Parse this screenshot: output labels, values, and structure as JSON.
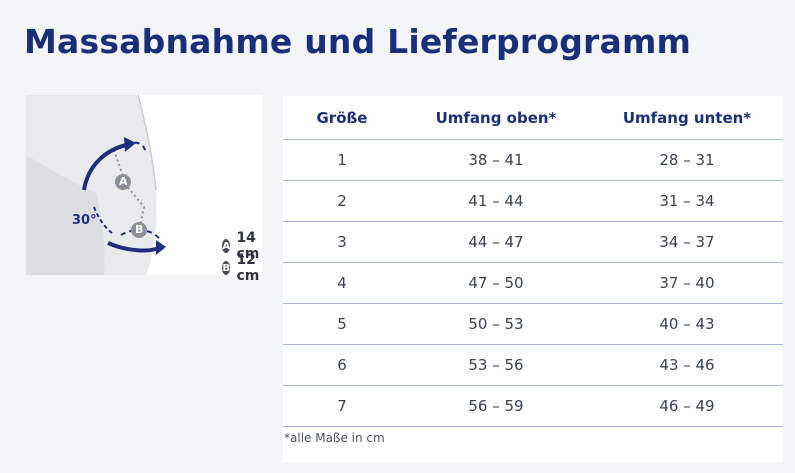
{
  "title": "Massabnahme und Lieferprogramm",
  "figure": {
    "angle_label": "30°",
    "marker_a": "A",
    "marker_b": "B",
    "legend": [
      {
        "marker": "A",
        "value": "14 cm"
      },
      {
        "marker": "B",
        "value": "12 cm"
      }
    ]
  },
  "table": {
    "headers": [
      "Größe",
      "Umfang oben*",
      "Umfang unten*"
    ],
    "rows": [
      [
        "1",
        "38 – 41",
        "28 – 31"
      ],
      [
        "2",
        "41 – 44",
        "31 – 34"
      ],
      [
        "3",
        "44 – 47",
        "34 – 37"
      ],
      [
        "4",
        "47 – 50",
        "37 – 40"
      ],
      [
        "5",
        "50 – 53",
        "40 – 43"
      ],
      [
        "6",
        "53 – 56",
        "43 – 46"
      ],
      [
        "7",
        "56 – 59",
        "46 – 49"
      ]
    ]
  },
  "footnote": "*alle Maße in cm",
  "colors": {
    "accent": "#1a2f7a",
    "line": "#a9b4d6",
    "background": "#f4f5f7"
  }
}
